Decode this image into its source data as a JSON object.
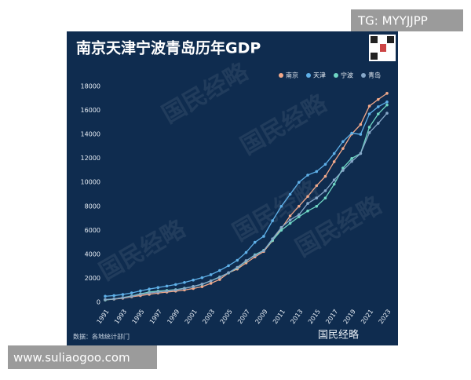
{
  "chart_data": {
    "type": "line",
    "title": "南京天津宁波青岛历年GDP",
    "source": "数据：各地统计部门",
    "x": [
      1991,
      1992,
      1993,
      1994,
      1995,
      1996,
      1997,
      1998,
      1999,
      2000,
      2001,
      2002,
      2003,
      2004,
      2005,
      2006,
      2007,
      2008,
      2009,
      2010,
      2011,
      2012,
      2013,
      2014,
      2015,
      2016,
      2017,
      2018,
      2019,
      2020,
      2021,
      2022,
      2023
    ],
    "xlim": [
      1991,
      2023
    ],
    "xticks": [
      1991,
      1993,
      1995,
      1997,
      1999,
      2001,
      2003,
      2005,
      2007,
      2009,
      2011,
      2013,
      2015,
      2017,
      2019,
      2021,
      2023
    ],
    "ylim": [
      0,
      18000
    ],
    "yticks": [
      0,
      2000,
      4000,
      6000,
      8000,
      10000,
      12000,
      14000,
      16000,
      18000
    ],
    "grid": false,
    "legend": "top-right",
    "series": [
      {
        "name": "南京",
        "color": "#f2a98a",
        "values": [
          200,
          260,
          340,
          460,
          560,
          660,
          770,
          850,
          930,
          1020,
          1150,
          1300,
          1580,
          1900,
          2450,
          2770,
          3280,
          3780,
          4230,
          5130,
          6150,
          7200,
          8010,
          8820,
          9720,
          10500,
          11720,
          12820,
          14030,
          14820,
          16360,
          16910,
          17420
        ]
      },
      {
        "name": "天津",
        "color": "#5fb0e8",
        "values": [
          500,
          560,
          650,
          780,
          950,
          1100,
          1230,
          1350,
          1480,
          1650,
          1850,
          2050,
          2300,
          2650,
          3050,
          3500,
          4150,
          5000,
          5500,
          6800,
          8000,
          9000,
          10000,
          10600,
          10900,
          11500,
          12400,
          13400,
          14100,
          14000,
          15700,
          16300,
          16700
        ]
      },
      {
        "name": "宁波",
        "color": "#6fd6c4",
        "values": [
          200,
          280,
          390,
          530,
          700,
          850,
          930,
          990,
          1050,
          1175,
          1310,
          1500,
          1790,
          2110,
          2450,
          2870,
          3430,
          3960,
          4330,
          5160,
          6010,
          6580,
          7130,
          7610,
          8000,
          8690,
          9840,
          11190,
          11990,
          12410,
          14600,
          15700,
          16450
        ]
      },
      {
        "name": "青岛",
        "color": "#86a7c8",
        "values": [
          230,
          280,
          380,
          500,
          660,
          780,
          860,
          940,
          1030,
          1150,
          1320,
          1520,
          1780,
          2080,
          2470,
          2910,
          3470,
          3900,
          4300,
          5290,
          6240,
          6860,
          7300,
          8240,
          8690,
          9300,
          10200,
          11000,
          11740,
          12400,
          14140,
          14920,
          15760
        ]
      }
    ]
  },
  "overlay_top": "TG: MYYJJPP",
  "overlay_bottom": "www.suliaogoo.com",
  "watermark": "国民经略"
}
